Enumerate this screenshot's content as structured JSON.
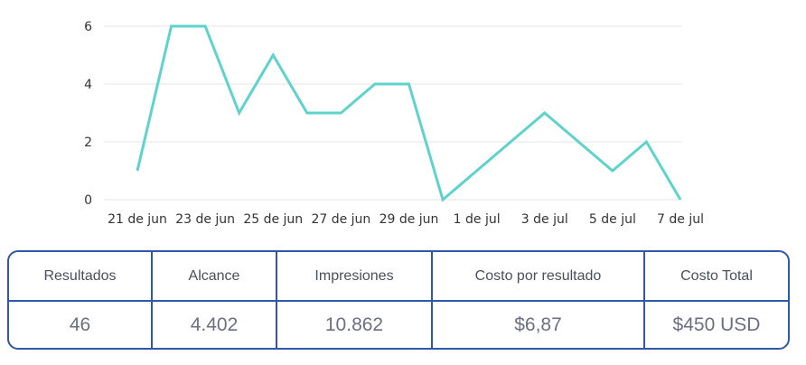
{
  "chart_data": {
    "type": "line",
    "title": "",
    "xlabel": "",
    "ylabel": "",
    "x": [
      "21 de jun",
      "22 de jun",
      "23 de jun",
      "24 de jun",
      "25 de jun",
      "26 de jun",
      "27 de jun",
      "28 de jun",
      "29 de jun",
      "30 de jun",
      "1 de jul",
      "2 de jul",
      "3 de jul",
      "4 de jul",
      "5 de jul",
      "6 de jul",
      "7 de jul"
    ],
    "x_tick_labels": [
      "21 de jun",
      "23 de jun",
      "25 de jun",
      "27 de jun",
      "29 de jun",
      "1 de jul",
      "3 de jul",
      "5 de jul",
      "7 de jul"
    ],
    "series": [
      {
        "values": [
          1,
          6,
          6,
          3,
          5,
          3,
          3,
          4,
          4,
          0,
          1,
          2,
          3,
          2,
          1,
          2,
          0
        ],
        "color": "#5ed3cc"
      }
    ],
    "ylim": [
      0,
      6
    ],
    "y_ticks": [
      0,
      2,
      4,
      6
    ],
    "grid": true,
    "legend": "none"
  },
  "metrics": {
    "resultados": {
      "label": "Resultados",
      "value": "46"
    },
    "alcance": {
      "label": "Alcance",
      "value": "4.402"
    },
    "impresiones": {
      "label": "Impresiones",
      "value": "10.862"
    },
    "costo_por_resultado": {
      "label": "Costo por resultado",
      "value": "$6,87"
    },
    "costo_total": {
      "label": "Costo Total",
      "value": "$450 USD"
    }
  },
  "colors": {
    "line": "#5ed3cc",
    "table_border": "#2f58a8"
  }
}
